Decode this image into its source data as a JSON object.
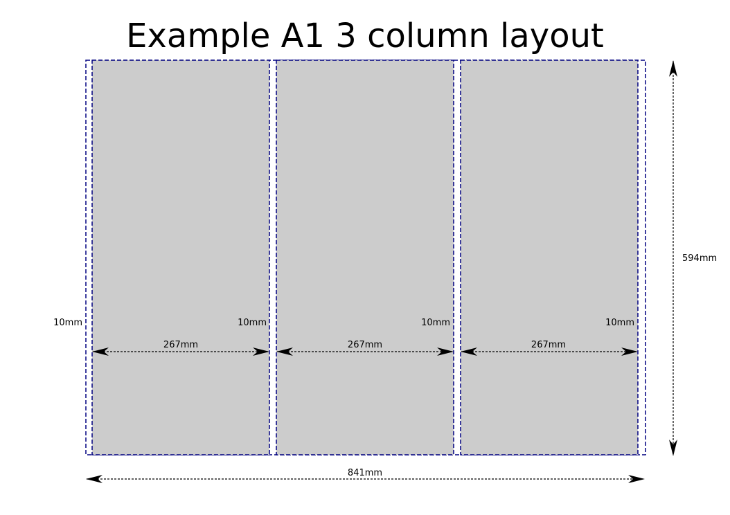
{
  "diagram": {
    "title": "Example A1 3 column layout",
    "total_width_label": "841mm",
    "total_height_label": "594mm",
    "gap_labels": [
      "10mm",
      "10mm",
      "10mm",
      "10mm"
    ],
    "column_width_labels": [
      "267mm",
      "267mm",
      "267mm"
    ]
  },
  "colors": {
    "column_fill": "#cccccc",
    "guide_stroke": "#000080",
    "arrow": "#000000",
    "text": "#000000"
  }
}
